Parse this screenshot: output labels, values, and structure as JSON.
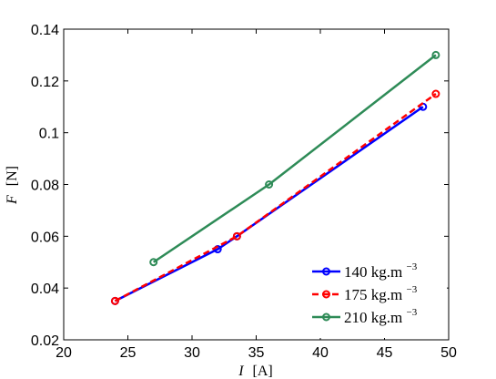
{
  "chart_data": {
    "type": "line",
    "title": "",
    "xlabel": {
      "symbol": "I",
      "unit": "[A]"
    },
    "ylabel": {
      "symbol": "F",
      "unit": "[N]"
    },
    "xlim": [
      20,
      50
    ],
    "ylim": [
      0.02,
      0.14
    ],
    "xticks": [
      20,
      25,
      30,
      35,
      40,
      45,
      50
    ],
    "yticks": [
      0.02,
      0.04,
      0.06,
      0.08,
      0.1,
      0.12,
      0.14
    ],
    "xtick_labels": [
      "20",
      "25",
      "30",
      "35",
      "40",
      "45",
      "50"
    ],
    "ytick_labels": [
      "0.02",
      "0.04",
      "0.06",
      "0.08",
      "0.1",
      "0.12",
      "0.14"
    ],
    "grid": false,
    "legend_position": "bottom-right",
    "series": [
      {
        "name": "140 kg.m-3",
        "legend_main": "140 kg.m",
        "legend_sup": "−3",
        "color": "#0000ff",
        "dash": "solid",
        "points": [
          [
            24,
            0.035
          ],
          [
            32,
            0.055
          ],
          [
            33.5,
            0.06
          ],
          [
            48,
            0.11
          ]
        ]
      },
      {
        "name": "175 kg.m-3",
        "legend_main": "175 kg.m",
        "legend_sup": "−3",
        "color": "#ff0000",
        "dash": "dashed",
        "points": [
          [
            24,
            0.035
          ],
          [
            33.5,
            0.06
          ],
          [
            49,
            0.115
          ]
        ]
      },
      {
        "name": "210 kg.m-3",
        "legend_main": "210 kg.m",
        "legend_sup": "−3",
        "color": "#2e8b57",
        "dash": "solid",
        "points": [
          [
            27,
            0.05
          ],
          [
            36,
            0.08
          ],
          [
            49,
            0.13
          ]
        ]
      }
    ]
  }
}
